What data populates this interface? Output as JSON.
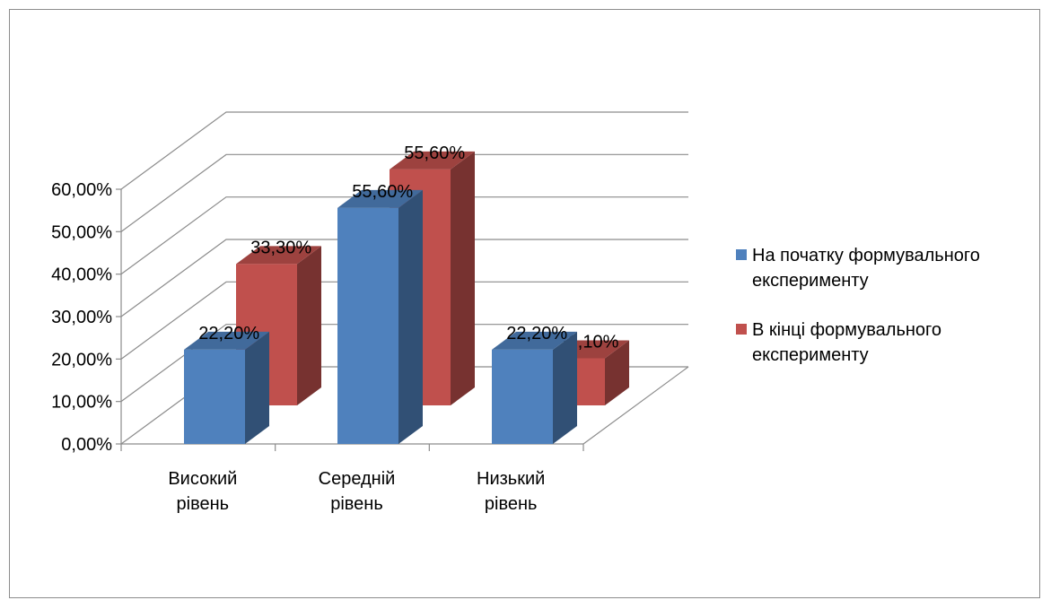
{
  "chart_data": {
    "type": "bar",
    "title": "",
    "xlabel": "",
    "ylabel": "",
    "categories": [
      [
        "Високий",
        "рівень"
      ],
      [
        "Середній",
        "рівень"
      ],
      [
        "Низький",
        "рівень"
      ]
    ],
    "series": [
      {
        "name": [
          "На початку формувального",
          "експерименту"
        ],
        "values": [
          0.222,
          0.556,
          0.222
        ],
        "labels": [
          "22,20%",
          "55,60%",
          "22,20%"
        ],
        "color": "#4F81BD"
      },
      {
        "name": [
          "В кінці формувального",
          "експерименту"
        ],
        "values": [
          0.333,
          0.556,
          0.111
        ],
        "labels": [
          "33,30%",
          "55,60%",
          "11,10%"
        ],
        "color": "#C0504D"
      }
    ],
    "ylim": [
      0,
      0.6
    ],
    "yticks": [
      "0,00%",
      "10,00%",
      "20,00%",
      "30,00%",
      "40,00%",
      "50,00%",
      "60,00%"
    ],
    "grid": true,
    "legend_position": "right",
    "style": "3d-clustered-column"
  }
}
